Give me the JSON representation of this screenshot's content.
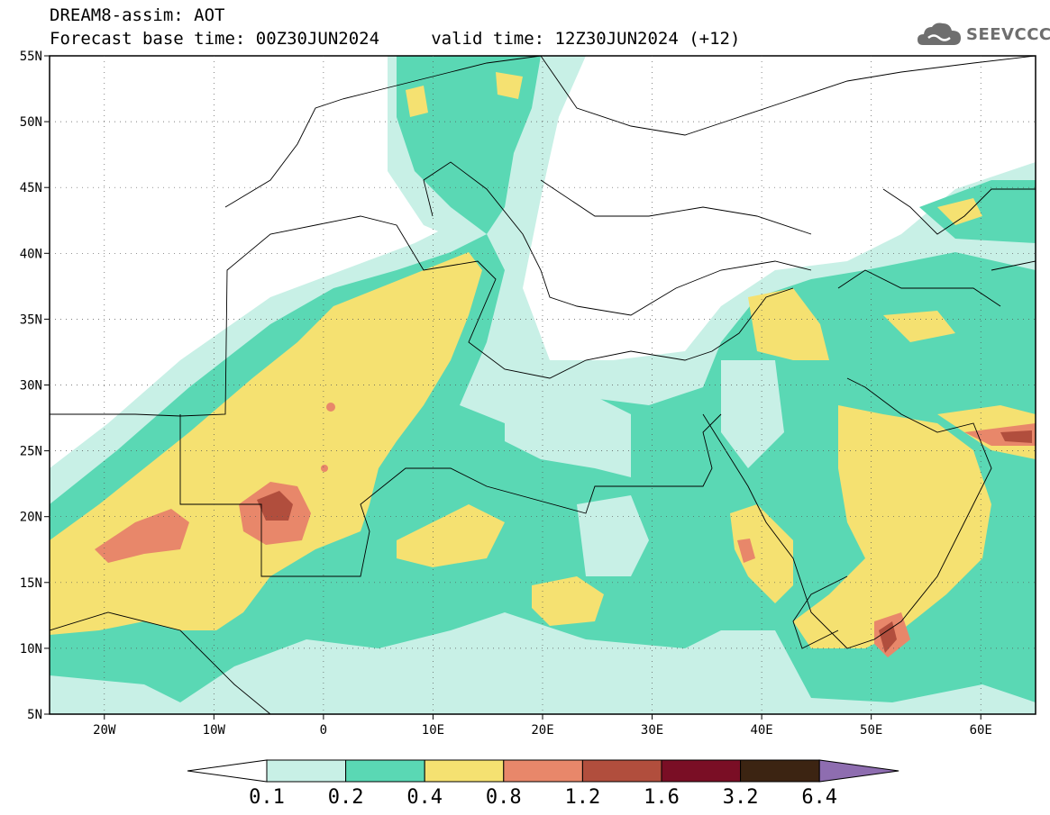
{
  "header": {
    "title_line1": "DREAM8-assim: AOT",
    "title_line2": "Forecast base time: 00Z30JUN2024     valid time: 12Z30JUN2024 (+12)"
  },
  "logo": {
    "icon": "cloud-icon",
    "text": "SEEVCCC"
  },
  "map": {
    "lon_range": [
      -25,
      65
    ],
    "lat_range": [
      5,
      55
    ],
    "lat_ticks": [
      {
        "value": 55,
        "label": "55N"
      },
      {
        "value": 50,
        "label": "50N"
      },
      {
        "value": 45,
        "label": "45N"
      },
      {
        "value": 40,
        "label": "40N"
      },
      {
        "value": 35,
        "label": "35N"
      },
      {
        "value": 30,
        "label": "30N"
      },
      {
        "value": 25,
        "label": "25N"
      },
      {
        "value": 20,
        "label": "20N"
      },
      {
        "value": 15,
        "label": "15N"
      },
      {
        "value": 10,
        "label": "10N"
      },
      {
        "value": 5,
        "label": "5N"
      }
    ],
    "lon_ticks": [
      {
        "value": -20,
        "label": "20W"
      },
      {
        "value": -10,
        "label": "10W"
      },
      {
        "value": 0,
        "label": "0"
      },
      {
        "value": 10,
        "label": "10E"
      },
      {
        "value": 20,
        "label": "20E"
      },
      {
        "value": 30,
        "label": "30E"
      },
      {
        "value": 40,
        "label": "40E"
      },
      {
        "value": 50,
        "label": "50E"
      },
      {
        "value": 60,
        "label": "60E"
      }
    ],
    "gridlines": "dotted"
  },
  "colorbar": {
    "labels": [
      "0.1",
      "0.2",
      "0.4",
      "0.8",
      "1.2",
      "1.6",
      "3.2",
      "6.4"
    ],
    "colors": [
      "#c8f0e6",
      "#5ad8b4",
      "#f5e171",
      "#e8876a",
      "#b14e3d",
      "#7a0e25",
      "#3c2412",
      "#8e6db0"
    ],
    "under_color": "#ffffff"
  }
}
